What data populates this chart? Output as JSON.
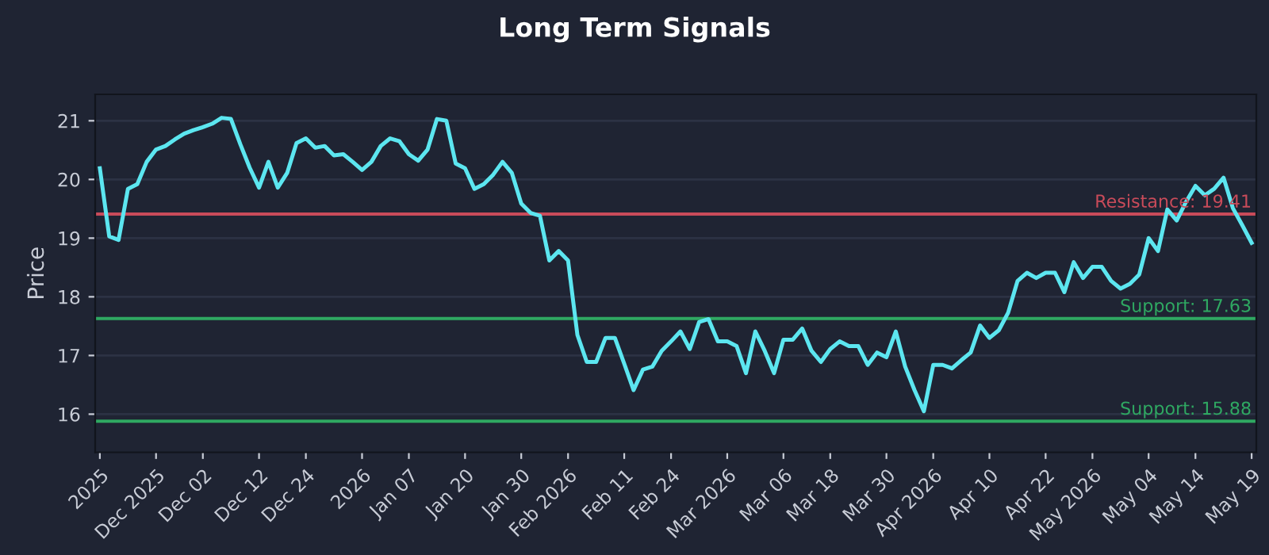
{
  "chart_data": {
    "type": "line",
    "title": "Long Term Signals",
    "ylabel": "Price",
    "categories": [
      "2025",
      null,
      null,
      null,
      null,
      null,
      "Dec 2025",
      null,
      null,
      null,
      null,
      "Dec 02",
      null,
      null,
      null,
      null,
      null,
      "Dec 12",
      null,
      null,
      null,
      null,
      "Dec 24",
      null,
      null,
      null,
      null,
      null,
      "2026",
      null,
      null,
      null,
      null,
      "Jan 07",
      null,
      null,
      null,
      null,
      null,
      "Jan 20",
      null,
      null,
      null,
      null,
      null,
      "Jan 30",
      null,
      null,
      null,
      null,
      "Feb 2026",
      null,
      null,
      null,
      null,
      null,
      "Feb 11",
      null,
      null,
      null,
      null,
      "Feb 24",
      null,
      null,
      null,
      null,
      null,
      "Mar 2026",
      null,
      null,
      null,
      null,
      null,
      "Mar 06",
      null,
      null,
      null,
      null,
      "Mar 18",
      null,
      null,
      null,
      null,
      null,
      "Mar 30",
      null,
      null,
      null,
      null,
      "Apr 2026",
      null,
      null,
      null,
      null,
      null,
      "Apr 10",
      null,
      null,
      null,
      null,
      null,
      "Apr 22",
      null,
      null,
      null,
      null,
      "May 2026",
      null,
      null,
      null,
      null,
      null,
      "May 04",
      null,
      null,
      null,
      null,
      "May 14",
      null,
      null,
      null,
      null,
      null,
      "May 19"
    ],
    "series": [
      {
        "color": "#5ce6f0",
        "values": [
          20.19,
          19.03,
          18.97,
          19.84,
          19.92,
          20.3,
          20.51,
          20.57,
          20.68,
          20.78,
          20.84,
          20.89,
          20.95,
          21.05,
          21.03,
          20.6,
          20.2,
          19.86,
          20.3,
          19.86,
          20.11,
          20.62,
          20.7,
          20.54,
          20.57,
          20.41,
          20.43,
          20.3,
          20.16,
          20.3,
          20.57,
          20.7,
          20.65,
          20.43,
          20.32,
          20.51,
          21.03,
          21.0,
          20.27,
          20.19,
          19.84,
          19.92,
          20.08,
          20.3,
          20.11,
          19.59,
          19.43,
          19.38,
          18.62,
          18.78,
          18.62,
          17.35,
          16.89,
          16.89,
          17.3,
          17.3,
          16.86,
          16.41,
          16.76,
          16.81,
          17.08,
          17.24,
          17.41,
          17.11,
          17.57,
          17.62,
          17.24,
          17.24,
          17.16,
          16.7,
          17.41,
          17.08,
          16.7,
          17.27,
          17.27,
          17.46,
          17.08,
          16.89,
          17.11,
          17.24,
          17.16,
          17.16,
          16.84,
          17.05,
          16.97,
          17.41,
          16.81,
          16.41,
          16.05,
          16.84,
          16.84,
          16.78,
          16.92,
          17.05,
          17.51,
          17.3,
          17.43,
          17.73,
          18.27,
          18.41,
          18.32,
          18.41,
          18.41,
          18.08,
          18.59,
          18.32,
          18.51,
          18.51,
          18.27,
          18.14,
          18.22,
          18.38,
          19.0,
          18.78,
          19.49,
          19.3,
          19.62,
          19.89,
          19.73,
          19.84,
          20.03,
          19.51,
          19.22,
          18.92
        ]
      }
    ],
    "ylim": [
      15.35,
      21.45
    ],
    "yticks": [
      16,
      17,
      18,
      19,
      20,
      21
    ],
    "grid": "y",
    "marker": "none",
    "line_style": "solid",
    "ref_lines": [
      {
        "axis": "y",
        "value": 19.41,
        "label": "Resistance: 19.41",
        "color": "#c94b5a"
      },
      {
        "axis": "y",
        "value": 17.63,
        "label": "Support: 17.63",
        "color": "#2fa862"
      },
      {
        "axis": "y",
        "value": 15.88,
        "label": "Support: 15.88",
        "color": "#2fa862"
      }
    ]
  }
}
